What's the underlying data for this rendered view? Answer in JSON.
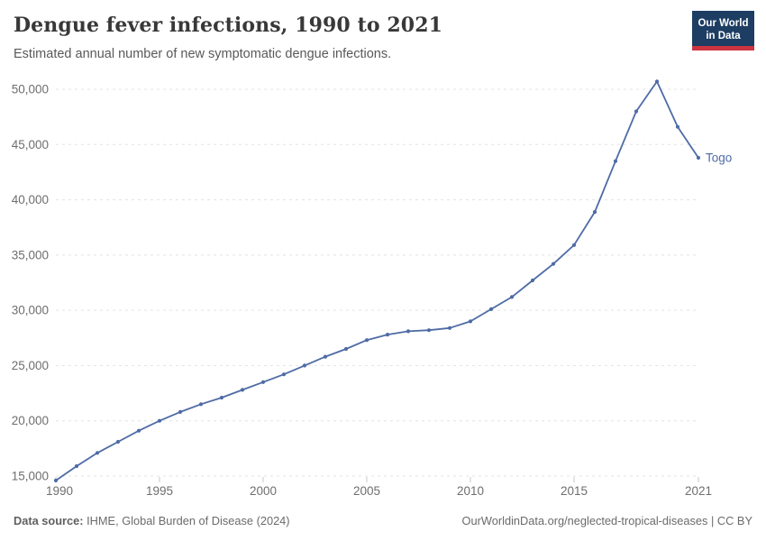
{
  "header": {
    "title": "Dengue fever infections, 1990 to 2021",
    "subtitle": "Estimated annual number of new symptomatic dengue infections.",
    "logo": {
      "line1": "Our World",
      "line2": "in Data",
      "bg_color": "#1d3d63",
      "bar_color": "#cc3441"
    }
  },
  "footer": {
    "source_label": "Data source:",
    "source_text": " IHME, Global Burden of Disease (2024)",
    "link_text": "OurWorldinData.org/neglected-tropical-diseases | CC BY"
  },
  "chart_data": {
    "type": "line",
    "title": "Dengue fever infections, 1990 to 2021",
    "subtitle": "Estimated annual number of new symptomatic dengue infections.",
    "xlabel": "",
    "ylabel": "",
    "x": [
      1990,
      1991,
      1992,
      1993,
      1994,
      1995,
      1996,
      1997,
      1998,
      1999,
      2000,
      2001,
      2002,
      2003,
      2004,
      2005,
      2006,
      2007,
      2008,
      2009,
      2010,
      2011,
      2012,
      2013,
      2014,
      2015,
      2016,
      2017,
      2018,
      2019,
      2020,
      2021
    ],
    "series": [
      {
        "name": "Togo",
        "color": "#4e6ba5",
        "values": [
          14600,
          15900,
          17100,
          18100,
          19100,
          20000,
          20800,
          21500,
          22100,
          22800,
          23500,
          24200,
          25000,
          25800,
          26500,
          27300,
          27800,
          28100,
          28200,
          28400,
          29000,
          30100,
          31200,
          32700,
          34200,
          35900,
          38900,
          43500,
          48000,
          50700,
          46600,
          43800
        ]
      }
    ],
    "x_ticks": [
      1990,
      1995,
      2000,
      2005,
      2010,
      2015,
      2021
    ],
    "y_ticks": [
      15000,
      20000,
      25000,
      30000,
      35000,
      40000,
      45000,
      50000
    ],
    "y_axis_range": [
      15000,
      50000
    ],
    "x_axis_range": [
      1990,
      2021
    ],
    "grid": "horizontal dashed",
    "legend": "end-of-line label",
    "marker": "dot"
  }
}
